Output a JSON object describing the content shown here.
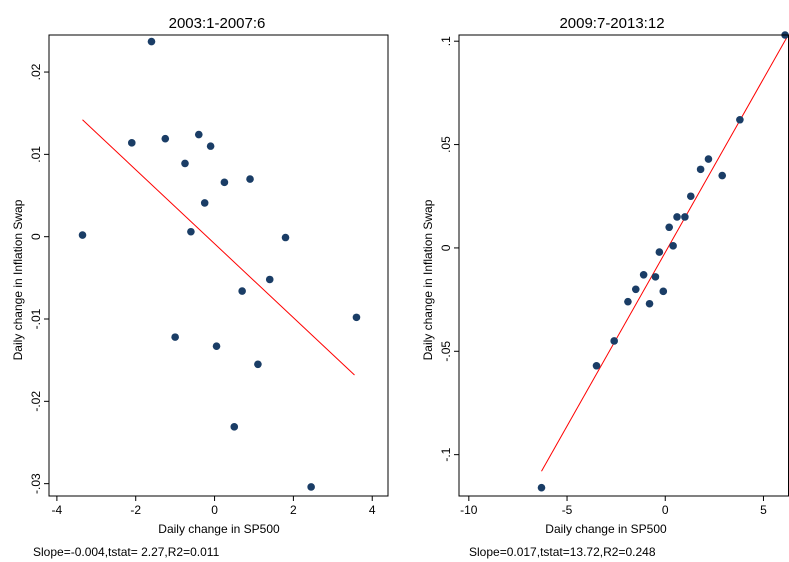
{
  "chart_data": [
    {
      "type": "scatter",
      "title": "2003:1-2007:6",
      "xlabel": "Daily change in SP500",
      "ylabel": "Daily change in Inflation Swap",
      "note": "Slope=-0.004,tstat= 2.27,R2=0.011",
      "xlim": [
        -4.2,
        4.4
      ],
      "ylim": [
        -0.0315,
        0.0245
      ],
      "xticks": [
        -4,
        -2,
        0,
        2,
        4
      ],
      "xtick_labels": [
        "-4",
        "-2",
        "0",
        "2",
        "4"
      ],
      "yticks": [
        0.02,
        0.01,
        0,
        -0.01,
        -0.02,
        -0.03
      ],
      "ytick_labels": [
        ".02",
        ".01",
        "0",
        "-.01",
        "-.02",
        "-.03"
      ],
      "points": [
        {
          "x": -3.35,
          "y": 0.0002
        },
        {
          "x": -2.1,
          "y": 0.0114
        },
        {
          "x": -1.6,
          "y": 0.0237
        },
        {
          "x": -1.25,
          "y": 0.0119
        },
        {
          "x": -0.75,
          "y": 0.0089
        },
        {
          "x": -1.0,
          "y": -0.0122
        },
        {
          "x": -0.6,
          "y": 0.0006
        },
        {
          "x": -0.4,
          "y": 0.0124
        },
        {
          "x": -0.25,
          "y": 0.0041
        },
        {
          "x": -0.1,
          "y": 0.011
        },
        {
          "x": 0.05,
          "y": -0.0133
        },
        {
          "x": 0.25,
          "y": 0.0066
        },
        {
          "x": 0.5,
          "y": -0.0231
        },
        {
          "x": 0.7,
          "y": -0.0066
        },
        {
          "x": 0.9,
          "y": 0.007
        },
        {
          "x": 1.1,
          "y": -0.0155
        },
        {
          "x": 1.4,
          "y": -0.0052
        },
        {
          "x": 1.8,
          "y": -0.0001
        },
        {
          "x": 2.45,
          "y": -0.0304
        },
        {
          "x": 3.6,
          "y": -0.0098
        }
      ],
      "fit_line": {
        "x": [
          -3.35,
          3.55
        ],
        "y": [
          0.0142,
          -0.0168
        ],
        "color": "#ff0000"
      },
      "marker_color": "#1a3d66"
    },
    {
      "type": "scatter",
      "title": "2009:7-2013:12",
      "xlabel": "Daily change in SP500",
      "ylabel": "Daily change in Inflation Swap",
      "note": "Slope=0.017,tstat=13.72,R2=0.248",
      "xlim": [
        -10.5,
        6.3
      ],
      "ylim": [
        -0.12,
        0.103
      ],
      "xticks": [
        -10,
        -5,
        0,
        5
      ],
      "xtick_labels": [
        "-10",
        "-5",
        "0",
        "5"
      ],
      "yticks": [
        0.1,
        0.05,
        0,
        -0.05,
        -0.1
      ],
      "ytick_labels": [
        ".1",
        ".05",
        "0",
        "-.05",
        "-.1"
      ],
      "points": [
        {
          "x": -6.3,
          "y": -0.116
        },
        {
          "x": -3.5,
          "y": -0.057
        },
        {
          "x": -2.6,
          "y": -0.045
        },
        {
          "x": -1.9,
          "y": -0.026
        },
        {
          "x": -1.5,
          "y": -0.02
        },
        {
          "x": -1.1,
          "y": -0.013
        },
        {
          "x": -0.8,
          "y": -0.027
        },
        {
          "x": -0.5,
          "y": -0.014
        },
        {
          "x": -0.3,
          "y": -0.002
        },
        {
          "x": -0.1,
          "y": -0.021
        },
        {
          "x": 0.2,
          "y": 0.01
        },
        {
          "x": 0.4,
          "y": 0.001
        },
        {
          "x": 0.6,
          "y": 0.015
        },
        {
          "x": 1.0,
          "y": 0.015
        },
        {
          "x": 1.3,
          "y": 0.025
        },
        {
          "x": 1.8,
          "y": 0.038
        },
        {
          "x": 2.2,
          "y": 0.043
        },
        {
          "x": 2.9,
          "y": 0.035
        },
        {
          "x": 3.8,
          "y": 0.062
        },
        {
          "x": 6.1,
          "y": 0.103
        }
      ],
      "fit_line": {
        "x": [
          -6.3,
          6.2
        ],
        "y": [
          -0.108,
          0.102
        ],
        "color": "#ff0000"
      },
      "marker_color": "#1a3d66"
    }
  ]
}
